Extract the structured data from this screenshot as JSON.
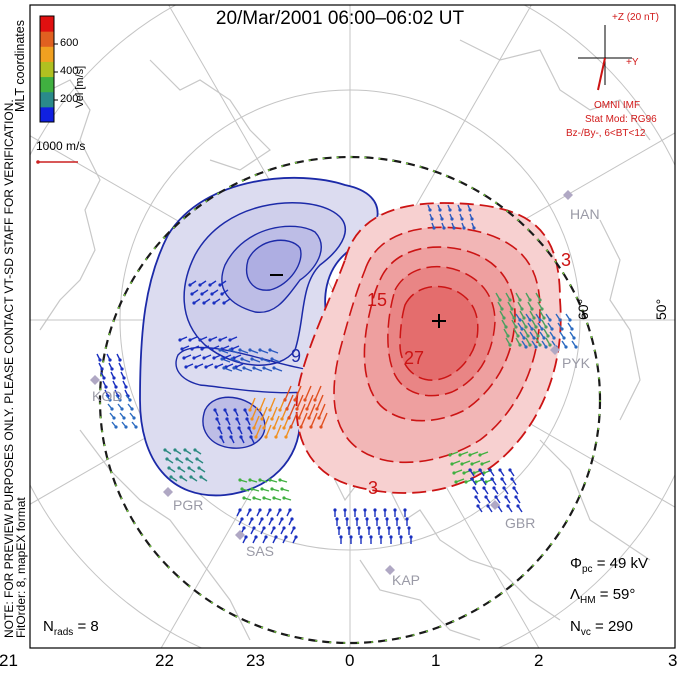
{
  "title": "20/Mar/2001 06:00–06:02 UT",
  "side_text": {
    "mlt_coordinates": "MLT coordinates",
    "note": "NOTE: FOR PREVIEW PURPOSES ONLY. PLEASE CONTACT VT-SD STAFF FOR VERIFICATION.",
    "fitorder": "FitOrder: 8, mapEX format"
  },
  "velocity_scale": {
    "label": "Vel [m/s]",
    "ticks": [
      "600",
      "400",
      "200"
    ],
    "colors": [
      "#1020e0",
      "#2a8a8a",
      "#40b040",
      "#b0c020",
      "#f0a020",
      "#e06020",
      "#e01010"
    ]
  },
  "reference_vector": {
    "label": "1000 m/s"
  },
  "imf": {
    "z_label": "+Z (20 nT)",
    "y_label": "+Y",
    "source": "OMNI IMF",
    "stat_mod": "Stat Mod: RG96",
    "condition": "Bz-/By-, 6<BT<12"
  },
  "latitude_labels": [
    "60°",
    "50°"
  ],
  "contours": {
    "negative_labels": [
      "–",
      "9"
    ],
    "positive_labels": [
      "3",
      "15",
      "27",
      "3"
    ]
  },
  "stations": [
    "HAN",
    "PYK",
    "KOD",
    "PGR",
    "SAS",
    "KAP",
    "GBR"
  ],
  "mlt_labels": [
    "21",
    "22",
    "23",
    "0",
    "1",
    "2",
    "3"
  ],
  "stats": {
    "phi_pc": {
      "symbol": "Φ",
      "sub": "pc",
      "value": "= 49 kV"
    },
    "lambda_hm": {
      "symbol": "Λ",
      "sub": "HM",
      "value": "= 59°"
    },
    "n_vc": {
      "symbol": "N",
      "sub": "vc",
      "value": "= 290"
    },
    "n_rads": {
      "symbol": "N",
      "sub": "rads",
      "value": "= 8"
    }
  }
}
